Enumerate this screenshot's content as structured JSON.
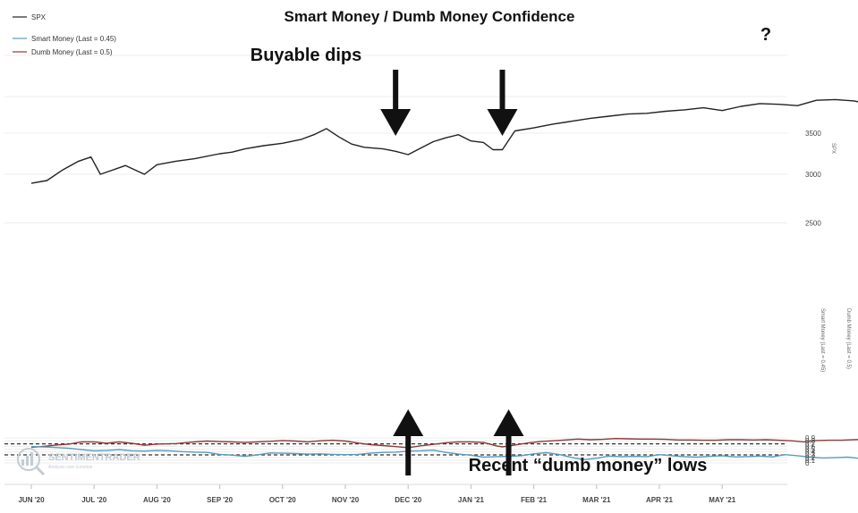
{
  "chart_data": {
    "type": "line",
    "title": "Smart Money / Dumb Money Confidence",
    "legend": {
      "placement": "top-left",
      "entries": [
        {
          "label": "SPX",
          "color": "#222222"
        },
        {
          "label": "Smart Money (Last = 0.45)",
          "color": "#5b9bbd"
        },
        {
          "label": "Dumb Money (Last = 0.5)",
          "color": "#8b3a3a"
        }
      ]
    },
    "x_ticks": [
      "JUN '20",
      "JUL '20",
      "AUG '20",
      "SEP '20",
      "OCT '20",
      "NOV '20",
      "DEC '20",
      "JAN '21",
      "FEB '21",
      "MAR '21",
      "APR '21",
      "MAY '21"
    ],
    "spx_axis": {
      "label": "SPX",
      "ticks": [
        2500,
        3000,
        3500
      ],
      "range": [
        2500,
        4200
      ],
      "side": "right",
      "scale": "log"
    },
    "conf_axis": {
      "label_smart": "Smart Money (Last = 0.45)",
      "label_dumb": "Dumb Money (Last = 0.5)",
      "ticks": [
        0,
        0.1,
        0.2,
        0.3,
        0.4,
        0.5,
        0.6,
        0.7,
        0.8,
        0.9
      ],
      "range": [
        -0.05,
        0.95
      ],
      "side": "right"
    },
    "reference_lines": [
      0.69,
      0.29
    ],
    "series": [
      {
        "name": "SPX",
        "axis": "spx",
        "color": "#222222",
        "values": [
          [
            0,
            2900
          ],
          [
            0.25,
            2930
          ],
          [
            0.5,
            3050
          ],
          [
            0.75,
            3150
          ],
          [
            0.95,
            3200
          ],
          [
            1.1,
            3000
          ],
          [
            1.3,
            3050
          ],
          [
            1.5,
            3100
          ],
          [
            1.8,
            3000
          ],
          [
            2.0,
            3110
          ],
          [
            2.3,
            3150
          ],
          [
            2.6,
            3180
          ],
          [
            3.0,
            3240
          ],
          [
            3.2,
            3260
          ],
          [
            3.4,
            3300
          ],
          [
            3.7,
            3340
          ],
          [
            4.0,
            3370
          ],
          [
            4.3,
            3420
          ],
          [
            4.5,
            3480
          ],
          [
            4.7,
            3560
          ],
          [
            4.9,
            3450
          ],
          [
            5.1,
            3360
          ],
          [
            5.3,
            3320
          ],
          [
            5.6,
            3300
          ],
          [
            5.8,
            3270
          ],
          [
            6.0,
            3230
          ],
          [
            6.2,
            3310
          ],
          [
            6.4,
            3390
          ],
          [
            6.6,
            3440
          ],
          [
            6.8,
            3480
          ],
          [
            7.0,
            3400
          ],
          [
            7.2,
            3380
          ],
          [
            7.35,
            3290
          ],
          [
            7.5,
            3290
          ],
          [
            7.7,
            3530
          ],
          [
            8.0,
            3570
          ],
          [
            8.3,
            3620
          ],
          [
            8.6,
            3660
          ],
          [
            8.9,
            3700
          ],
          [
            9.2,
            3730
          ],
          [
            9.5,
            3760
          ],
          [
            9.8,
            3770
          ],
          [
            10.1,
            3800
          ],
          [
            10.4,
            3820
          ],
          [
            10.7,
            3850
          ],
          [
            11.0,
            3810
          ],
          [
            11.3,
            3870
          ],
          [
            11.6,
            3910
          ],
          [
            11.9,
            3900
          ],
          [
            12.2,
            3880
          ],
          [
            12.5,
            3960
          ],
          [
            12.8,
            3970
          ],
          [
            13.1,
            3950
          ],
          [
            13.4,
            3890
          ],
          [
            13.6,
            3950
          ],
          [
            13.9,
            4000
          ],
          [
            14.2,
            4050
          ],
          [
            14.5,
            4080
          ],
          [
            14.8,
            4120
          ],
          [
            15.1,
            4170
          ],
          [
            15.4,
            4180
          ],
          [
            15.7,
            4200
          ],
          [
            16.0,
            4180
          ],
          [
            16.2,
            4210
          ],
          [
            16.4,
            4190
          ],
          [
            16.6,
            4200
          ],
          [
            16.8,
            4140
          ],
          [
            17.0,
            4160
          ],
          [
            17.2,
            4080
          ],
          [
            17.4,
            4120
          ],
          [
            17.6,
            4160
          ],
          [
            17.85,
            4150
          ]
        ]
      },
      {
        "name": "Dumb Money (Last = 0.5)",
        "axis": "conf",
        "color": "#8b3a3a",
        "values": [
          [
            0,
            0.56
          ],
          [
            0.2,
            0.6
          ],
          [
            0.4,
            0.65
          ],
          [
            0.6,
            0.68
          ],
          [
            0.8,
            0.76
          ],
          [
            1.0,
            0.76
          ],
          [
            1.2,
            0.71
          ],
          [
            1.4,
            0.76
          ],
          [
            1.6,
            0.71
          ],
          [
            1.8,
            0.64
          ],
          [
            2.0,
            0.68
          ],
          [
            2.3,
            0.7
          ],
          [
            2.6,
            0.76
          ],
          [
            2.8,
            0.79
          ],
          [
            3.0,
            0.77
          ],
          [
            3.2,
            0.76
          ],
          [
            3.4,
            0.74
          ],
          [
            3.6,
            0.76
          ],
          [
            3.8,
            0.78
          ],
          [
            4.0,
            0.81
          ],
          [
            4.2,
            0.79
          ],
          [
            4.4,
            0.76
          ],
          [
            4.6,
            0.8
          ],
          [
            4.8,
            0.82
          ],
          [
            5.0,
            0.79
          ],
          [
            5.2,
            0.72
          ],
          [
            5.4,
            0.66
          ],
          [
            5.6,
            0.63
          ],
          [
            5.8,
            0.59
          ],
          [
            6.0,
            0.55
          ],
          [
            6.2,
            0.62
          ],
          [
            6.4,
            0.67
          ],
          [
            6.6,
            0.73
          ],
          [
            6.8,
            0.76
          ],
          [
            7.0,
            0.76
          ],
          [
            7.2,
            0.74
          ],
          [
            7.4,
            0.62
          ],
          [
            7.5,
            0.58
          ],
          [
            7.7,
            0.65
          ],
          [
            7.9,
            0.72
          ],
          [
            8.1,
            0.77
          ],
          [
            8.3,
            0.8
          ],
          [
            8.5,
            0.83
          ],
          [
            8.7,
            0.86
          ],
          [
            8.9,
            0.84
          ],
          [
            9.1,
            0.85
          ],
          [
            9.3,
            0.88
          ],
          [
            9.5,
            0.87
          ],
          [
            9.7,
            0.86
          ],
          [
            9.9,
            0.86
          ],
          [
            10.1,
            0.85
          ],
          [
            10.3,
            0.83
          ],
          [
            10.5,
            0.83
          ],
          [
            10.7,
            0.82
          ],
          [
            10.9,
            0.82
          ],
          [
            11.1,
            0.84
          ],
          [
            11.3,
            0.84
          ],
          [
            11.5,
            0.83
          ],
          [
            11.7,
            0.84
          ],
          [
            11.9,
            0.82
          ],
          [
            12.1,
            0.8
          ],
          [
            12.3,
            0.76
          ],
          [
            12.5,
            0.81
          ],
          [
            12.7,
            0.82
          ],
          [
            12.9,
            0.82
          ],
          [
            13.1,
            0.84
          ],
          [
            13.3,
            0.85
          ],
          [
            13.5,
            0.83
          ],
          [
            13.7,
            0.79
          ],
          [
            13.9,
            0.76
          ],
          [
            14.1,
            0.69
          ],
          [
            14.3,
            0.72
          ],
          [
            14.5,
            0.73
          ],
          [
            14.7,
            0.72
          ],
          [
            14.9,
            0.7
          ],
          [
            15.1,
            0.68
          ],
          [
            15.3,
            0.67
          ],
          [
            15.5,
            0.69
          ],
          [
            15.7,
            0.75
          ],
          [
            15.9,
            0.77
          ],
          [
            16.1,
            0.78
          ],
          [
            16.3,
            0.78
          ],
          [
            16.5,
            0.76
          ],
          [
            16.7,
            0.75
          ],
          [
            16.9,
            0.73
          ],
          [
            17.1,
            0.7
          ],
          [
            17.3,
            0.64
          ],
          [
            17.45,
            0.52
          ],
          [
            17.6,
            0.55
          ],
          [
            17.75,
            0.53
          ],
          [
            17.85,
            0.49
          ]
        ]
      },
      {
        "name": "Smart Money (Last = 0.45)",
        "axis": "conf",
        "color": "#5b9bbd",
        "values": [
          [
            0,
            0.59
          ],
          [
            0.3,
            0.57
          ],
          [
            0.6,
            0.53
          ],
          [
            0.8,
            0.48
          ],
          [
            1.0,
            0.44
          ],
          [
            1.2,
            0.45
          ],
          [
            1.4,
            0.48
          ],
          [
            1.6,
            0.44
          ],
          [
            1.8,
            0.43
          ],
          [
            2.0,
            0.45
          ],
          [
            2.2,
            0.44
          ],
          [
            2.4,
            0.41
          ],
          [
            2.6,
            0.39
          ],
          [
            2.8,
            0.38
          ],
          [
            3.0,
            0.31
          ],
          [
            3.2,
            0.28
          ],
          [
            3.4,
            0.24
          ],
          [
            3.6,
            0.29
          ],
          [
            3.8,
            0.36
          ],
          [
            4.0,
            0.35
          ],
          [
            4.2,
            0.34
          ],
          [
            4.4,
            0.32
          ],
          [
            4.6,
            0.33
          ],
          [
            4.8,
            0.31
          ],
          [
            5.0,
            0.3
          ],
          [
            5.2,
            0.31
          ],
          [
            5.4,
            0.35
          ],
          [
            5.6,
            0.38
          ],
          [
            5.8,
            0.39
          ],
          [
            6.0,
            0.43
          ],
          [
            6.2,
            0.44
          ],
          [
            6.4,
            0.46
          ],
          [
            6.6,
            0.38
          ],
          [
            6.8,
            0.32
          ],
          [
            7.0,
            0.28
          ],
          [
            7.2,
            0.21
          ],
          [
            7.4,
            0.23
          ],
          [
            7.6,
            0.24
          ],
          [
            7.8,
            0.26
          ],
          [
            8.0,
            0.33
          ],
          [
            8.2,
            0.37
          ],
          [
            8.4,
            0.31
          ],
          [
            8.6,
            0.2
          ],
          [
            8.8,
            0.12
          ],
          [
            9.0,
            0.17
          ],
          [
            9.2,
            0.25
          ],
          [
            9.4,
            0.23
          ],
          [
            9.6,
            0.24
          ],
          [
            9.8,
            0.23
          ],
          [
            10.0,
            0.3
          ],
          [
            10.2,
            0.26
          ],
          [
            10.4,
            0.23
          ],
          [
            10.6,
            0.21
          ],
          [
            10.8,
            0.24
          ],
          [
            11.0,
            0.26
          ],
          [
            11.2,
            0.22
          ],
          [
            11.4,
            0.23
          ],
          [
            11.6,
            0.25
          ],
          [
            11.8,
            0.22
          ],
          [
            12.0,
            0.3
          ],
          [
            12.2,
            0.26
          ],
          [
            12.4,
            0.21
          ],
          [
            12.6,
            0.18
          ],
          [
            12.8,
            0.19
          ],
          [
            13.0,
            0.21
          ],
          [
            13.2,
            0.16
          ],
          [
            13.4,
            0.13
          ],
          [
            13.6,
            0.15
          ],
          [
            13.8,
            0.23
          ],
          [
            14.0,
            0.32
          ],
          [
            14.2,
            0.36
          ],
          [
            14.4,
            0.34
          ],
          [
            14.6,
            0.3
          ],
          [
            14.8,
            0.27
          ],
          [
            15.0,
            0.28
          ],
          [
            15.2,
            0.33
          ],
          [
            15.4,
            0.36
          ],
          [
            15.6,
            0.31
          ],
          [
            15.8,
            0.27
          ],
          [
            16.0,
            0.2
          ],
          [
            16.2,
            0.17
          ],
          [
            16.4,
            0.19
          ],
          [
            16.6,
            0.24
          ],
          [
            16.8,
            0.26
          ],
          [
            17.0,
            0.31
          ],
          [
            17.2,
            0.34
          ],
          [
            17.4,
            0.42
          ],
          [
            17.6,
            0.41
          ],
          [
            17.85,
            0.44
          ]
        ]
      }
    ],
    "annotations": {
      "top_label": "Buyable dips",
      "question": "?",
      "bottom_label": "Recent “dumb money” lows"
    },
    "arrows": [
      {
        "direction": "down",
        "at_x": 5.8
      },
      {
        "direction": "down",
        "at_x": 7.5
      },
      {
        "direction": "down",
        "at_x": 17.7
      },
      {
        "direction": "up",
        "at_x": 6.0
      },
      {
        "direction": "up",
        "at_x": 7.6
      },
      {
        "direction": "up",
        "at_x": 17.6
      }
    ],
    "watermark": {
      "main": "SENTIMENTRADER",
      "sub": "Analysis over Emotion"
    },
    "grid": true
  }
}
